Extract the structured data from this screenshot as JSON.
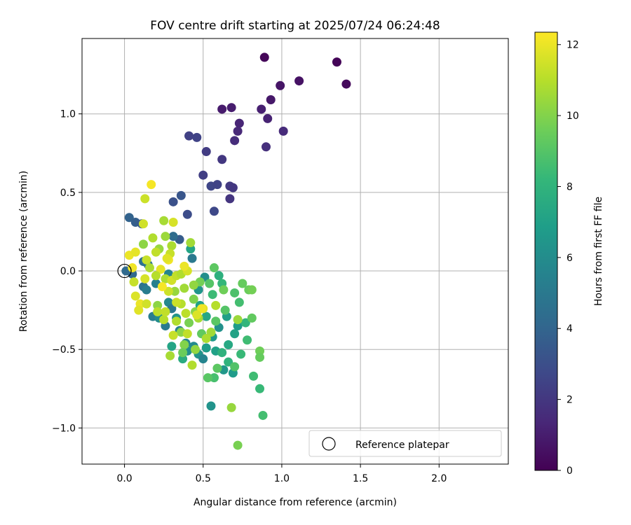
{
  "chart_data": {
    "type": "scatter",
    "title": "FOV centre drift starting at 2025/07/24 06:24:48",
    "xlabel": "Angular distance from reference (arcmin)",
    "ylabel": "Rotation from reference (arcmin)",
    "xlim": [
      -0.27,
      2.44
    ],
    "ylim": [
      -1.23,
      1.48
    ],
    "xticks": [
      0.0,
      0.5,
      1.0,
      1.5,
      2.0
    ],
    "xtick_labels": [
      "0.0",
      "0.5",
      "1.0",
      "1.5",
      "2.0"
    ],
    "yticks": [
      -1.0,
      -0.5,
      0.0,
      0.5,
      1.0
    ],
    "ytick_labels": [
      "−1.0",
      "−0.5",
      "0.0",
      "0.5",
      "1.0"
    ],
    "grid": true,
    "colormap": "viridis",
    "colorbar": {
      "label": "Hours from first FF file",
      "range": [
        0,
        12.35
      ],
      "ticks": [
        0,
        2,
        4,
        6,
        8,
        10,
        12
      ],
      "tick_labels": [
        "0",
        "2",
        "4",
        "6",
        "8",
        "10",
        "12"
      ]
    },
    "legend": {
      "placement": "lower-right",
      "entries": [
        {
          "label": "Reference platepar",
          "marker": "open-circle"
        }
      ]
    },
    "reference_point": {
      "x": 0.0,
      "y": 0.0
    },
    "points": [
      {
        "x": 1.35,
        "y": 1.33,
        "t": 0.1
      },
      {
        "x": 0.89,
        "y": 1.36,
        "t": 0.2
      },
      {
        "x": 1.41,
        "y": 1.19,
        "t": 0.3
      },
      {
        "x": 1.11,
        "y": 1.21,
        "t": 0.6
      },
      {
        "x": 0.99,
        "y": 1.18,
        "t": 0.7
      },
      {
        "x": 0.93,
        "y": 1.09,
        "t": 0.8
      },
      {
        "x": 0.62,
        "y": 1.03,
        "t": 0.9
      },
      {
        "x": 0.68,
        "y": 1.04,
        "t": 1.0
      },
      {
        "x": 0.87,
        "y": 1.03,
        "t": 1.1
      },
      {
        "x": 0.91,
        "y": 0.97,
        "t": 1.2
      },
      {
        "x": 0.73,
        "y": 0.94,
        "t": 1.3
      },
      {
        "x": 0.72,
        "y": 0.89,
        "t": 1.4
      },
      {
        "x": 1.01,
        "y": 0.89,
        "t": 1.5
      },
      {
        "x": 0.7,
        "y": 0.83,
        "t": 1.6
      },
      {
        "x": 0.9,
        "y": 0.79,
        "t": 1.7
      },
      {
        "x": 0.41,
        "y": 0.86,
        "t": 2.4
      },
      {
        "x": 0.46,
        "y": 0.85,
        "t": 2.5
      },
      {
        "x": 0.52,
        "y": 0.76,
        "t": 2.2
      },
      {
        "x": 0.62,
        "y": 0.71,
        "t": 2.0
      },
      {
        "x": 0.5,
        "y": 0.61,
        "t": 2.3
      },
      {
        "x": 0.55,
        "y": 0.54,
        "t": 2.6
      },
      {
        "x": 0.59,
        "y": 0.55,
        "t": 2.5
      },
      {
        "x": 0.67,
        "y": 0.54,
        "t": 2.1
      },
      {
        "x": 0.69,
        "y": 0.53,
        "t": 2.0
      },
      {
        "x": 0.67,
        "y": 0.46,
        "t": 1.9
      },
      {
        "x": 0.57,
        "y": 0.38,
        "t": 2.7
      },
      {
        "x": 0.36,
        "y": 0.48,
        "t": 3.3
      },
      {
        "x": 0.31,
        "y": 0.44,
        "t": 3.1
      },
      {
        "x": 0.4,
        "y": 0.36,
        "t": 2.9
      },
      {
        "x": 0.03,
        "y": 0.34,
        "t": 3.9
      },
      {
        "x": 0.07,
        "y": 0.31,
        "t": 3.7
      },
      {
        "x": 0.11,
        "y": 0.3,
        "t": 3.4
      },
      {
        "x": 0.35,
        "y": 0.2,
        "t": 3.6
      },
      {
        "x": 0.31,
        "y": 0.22,
        "t": 4.4
      },
      {
        "x": 0.43,
        "y": 0.08,
        "t": 5.0
      },
      {
        "x": 0.42,
        "y": 0.14,
        "t": 7.2
      },
      {
        "x": 0.01,
        "y": 0.0,
        "t": 4.2
      },
      {
        "x": 0.05,
        "y": -0.02,
        "t": 4.1
      },
      {
        "x": 0.12,
        "y": 0.06,
        "t": 4.6
      },
      {
        "x": 0.15,
        "y": 0.04,
        "t": 4.8
      },
      {
        "x": 0.12,
        "y": -0.1,
        "t": 4.7
      },
      {
        "x": 0.14,
        "y": -0.12,
        "t": 5.2
      },
      {
        "x": 0.2,
        "y": -0.08,
        "t": 5.4
      },
      {
        "x": 0.28,
        "y": -0.02,
        "t": 5.6
      },
      {
        "x": 0.18,
        "y": -0.29,
        "t": 5.3
      },
      {
        "x": 0.22,
        "y": -0.3,
        "t": 6.0
      },
      {
        "x": 0.26,
        "y": -0.35,
        "t": 5.1
      },
      {
        "x": 0.28,
        "y": -0.2,
        "t": 5.8
      },
      {
        "x": 0.3,
        "y": -0.24,
        "t": 4.9
      },
      {
        "x": 0.33,
        "y": -0.3,
        "t": 6.3
      },
      {
        "x": 0.35,
        "y": -0.38,
        "t": 5.5
      },
      {
        "x": 0.39,
        "y": -0.46,
        "t": 5.7
      },
      {
        "x": 0.4,
        "y": -0.51,
        "t": 6.1
      },
      {
        "x": 0.44,
        "y": -0.48,
        "t": 5.9
      },
      {
        "x": 0.47,
        "y": -0.53,
        "t": 6.4
      },
      {
        "x": 0.5,
        "y": -0.56,
        "t": 5.6
      },
      {
        "x": 0.52,
        "y": -0.49,
        "t": 6.8
      },
      {
        "x": 0.56,
        "y": -0.42,
        "t": 6.6
      },
      {
        "x": 0.58,
        "y": -0.51,
        "t": 7.0
      },
      {
        "x": 0.6,
        "y": -0.36,
        "t": 6.2
      },
      {
        "x": 0.63,
        "y": -0.63,
        "t": 6.5
      },
      {
        "x": 0.65,
        "y": -0.29,
        "t": 6.9
      },
      {
        "x": 0.66,
        "y": -0.47,
        "t": 7.4
      },
      {
        "x": 0.69,
        "y": -0.65,
        "t": 6.7
      },
      {
        "x": 0.7,
        "y": -0.4,
        "t": 7.1
      },
      {
        "x": 0.72,
        "y": -0.35,
        "t": 6.8
      },
      {
        "x": 0.55,
        "y": -0.86,
        "t": 6.3
      },
      {
        "x": 0.37,
        "y": -0.56,
        "t": 7.6
      },
      {
        "x": 0.3,
        "y": -0.48,
        "t": 7.2
      },
      {
        "x": 0.52,
        "y": -0.29,
        "t": 7.3
      },
      {
        "x": 0.48,
        "y": -0.22,
        "t": 7.0
      },
      {
        "x": 0.47,
        "y": -0.12,
        "t": 6.4
      },
      {
        "x": 0.51,
        "y": -0.04,
        "t": 6.1
      },
      {
        "x": 0.6,
        "y": -0.03,
        "t": 7.8
      },
      {
        "x": 0.62,
        "y": -0.08,
        "t": 8.2
      },
      {
        "x": 0.56,
        "y": -0.15,
        "t": 8.4
      },
      {
        "x": 0.7,
        "y": -0.14,
        "t": 8.8
      },
      {
        "x": 0.73,
        "y": -0.2,
        "t": 8.6
      },
      {
        "x": 0.77,
        "y": -0.33,
        "t": 8.1
      },
      {
        "x": 0.78,
        "y": -0.44,
        "t": 8.5
      },
      {
        "x": 0.74,
        "y": -0.53,
        "t": 8.3
      },
      {
        "x": 0.66,
        "y": -0.58,
        "t": 8.0
      },
      {
        "x": 0.62,
        "y": -0.52,
        "t": 7.9
      },
      {
        "x": 0.57,
        "y": -0.68,
        "t": 8.7
      },
      {
        "x": 0.53,
        "y": -0.68,
        "t": 9.1
      },
      {
        "x": 0.59,
        "y": -0.62,
        "t": 9.2
      },
      {
        "x": 0.7,
        "y": -0.61,
        "t": 8.9
      },
      {
        "x": 0.81,
        "y": -0.3,
        "t": 9.3
      },
      {
        "x": 0.79,
        "y": -0.12,
        "t": 9.5
      },
      {
        "x": 0.75,
        "y": -0.08,
        "t": 9.4
      },
      {
        "x": 0.63,
        "y": -0.12,
        "t": 9.6
      },
      {
        "x": 0.57,
        "y": 0.02,
        "t": 9.2
      },
      {
        "x": 0.54,
        "y": -0.08,
        "t": 9.0
      },
      {
        "x": 0.48,
        "y": -0.07,
        "t": 9.7
      },
      {
        "x": 0.44,
        "y": -0.18,
        "t": 9.9
      },
      {
        "x": 0.45,
        "y": -0.26,
        "t": 10.1
      },
      {
        "x": 0.41,
        "y": -0.33,
        "t": 9.8
      },
      {
        "x": 0.36,
        "y": -0.39,
        "t": 10.2
      },
      {
        "x": 0.38,
        "y": -0.47,
        "t": 10.0
      },
      {
        "x": 0.49,
        "y": -0.4,
        "t": 9.3
      },
      {
        "x": 0.58,
        "y": -0.32,
        "t": 9.1
      },
      {
        "x": 0.64,
        "y": -0.25,
        "t": 9.0
      },
      {
        "x": 0.86,
        "y": -0.51,
        "t": 9.6
      },
      {
        "x": 0.82,
        "y": -0.67,
        "t": 8.5
      },
      {
        "x": 0.86,
        "y": -0.75,
        "t": 8.3
      },
      {
        "x": 0.88,
        "y": -0.92,
        "t": 8.6
      },
      {
        "x": 0.68,
        "y": -0.87,
        "t": 10.4
      },
      {
        "x": 0.72,
        "y": -1.11,
        "t": 9.8
      },
      {
        "x": 0.86,
        "y": -0.55,
        "t": 9.4
      },
      {
        "x": 0.81,
        "y": -0.12,
        "t": 9.7
      },
      {
        "x": 0.72,
        "y": -0.31,
        "t": 10.5
      },
      {
        "x": 0.55,
        "y": -0.39,
        "t": 10.6
      },
      {
        "x": 0.52,
        "y": -0.43,
        "t": 10.8
      },
      {
        "x": 0.45,
        "y": -0.5,
        "t": 10.3
      },
      {
        "x": 0.43,
        "y": -0.6,
        "t": 10.9
      },
      {
        "x": 0.37,
        "y": -0.52,
        "t": 9.5
      },
      {
        "x": 0.29,
        "y": -0.54,
        "t": 10.7
      },
      {
        "x": 0.25,
        "y": -0.31,
        "t": 11.0
      },
      {
        "x": 0.21,
        "y": -0.22,
        "t": 10.2
      },
      {
        "x": 0.21,
        "y": -0.26,
        "t": 11.1
      },
      {
        "x": 0.26,
        "y": -0.26,
        "t": 11.2
      },
      {
        "x": 0.31,
        "y": -0.41,
        "t": 11.3
      },
      {
        "x": 0.33,
        "y": -0.32,
        "t": 10.9
      },
      {
        "x": 0.36,
        "y": -0.21,
        "t": 11.0
      },
      {
        "x": 0.38,
        "y": -0.11,
        "t": 10.6
      },
      {
        "x": 0.32,
        "y": -0.13,
        "t": 10.4
      },
      {
        "x": 0.28,
        "y": -0.13,
        "t": 11.4
      },
      {
        "x": 0.26,
        "y": -0.05,
        "t": 10.8
      },
      {
        "x": 0.3,
        "y": -0.06,
        "t": 11.5
      },
      {
        "x": 0.33,
        "y": -0.03,
        "t": 11.2
      },
      {
        "x": 0.36,
        "y": -0.02,
        "t": 10.9
      },
      {
        "x": 0.4,
        "y": 0.0,
        "t": 11.6
      },
      {
        "x": 0.44,
        "y": -0.09,
        "t": 10.3
      },
      {
        "x": 0.5,
        "y": -0.24,
        "t": 11.8
      },
      {
        "x": 0.58,
        "y": -0.22,
        "t": 11.0
      },
      {
        "x": 0.47,
        "y": -0.3,
        "t": 10.7
      },
      {
        "x": 0.4,
        "y": -0.4,
        "t": 11.2
      },
      {
        "x": 0.42,
        "y": 0.18,
        "t": 10.6
      },
      {
        "x": 0.3,
        "y": 0.16,
        "t": 10.8
      },
      {
        "x": 0.29,
        "y": 0.11,
        "t": 11.3
      },
      {
        "x": 0.22,
        "y": 0.14,
        "t": 10.4
      },
      {
        "x": 0.18,
        "y": 0.21,
        "t": 10.9
      },
      {
        "x": 0.12,
        "y": 0.17,
        "t": 10.2
      },
      {
        "x": 0.26,
        "y": 0.22,
        "t": 10.5
      },
      {
        "x": 0.25,
        "y": 0.32,
        "t": 10.7
      },
      {
        "x": 0.31,
        "y": 0.31,
        "t": 11.6
      },
      {
        "x": 0.13,
        "y": 0.46,
        "t": 11.4
      },
      {
        "x": 0.17,
        "y": 0.55,
        "t": 12.2
      },
      {
        "x": 0.12,
        "y": 0.3,
        "t": 11.5
      },
      {
        "x": 0.03,
        "y": 0.1,
        "t": 12.0
      },
      {
        "x": 0.07,
        "y": 0.12,
        "t": 11.9
      },
      {
        "x": 0.05,
        "y": 0.02,
        "t": 12.1
      },
      {
        "x": 0.06,
        "y": -0.07,
        "t": 11.3
      },
      {
        "x": 0.07,
        "y": -0.16,
        "t": 11.7
      },
      {
        "x": 0.1,
        "y": -0.21,
        "t": 12.0
      },
      {
        "x": 0.09,
        "y": -0.25,
        "t": 11.8
      },
      {
        "x": 0.14,
        "y": -0.21,
        "t": 11.5
      },
      {
        "x": 0.13,
        "y": -0.05,
        "t": 11.6
      },
      {
        "x": 0.14,
        "y": 0.07,
        "t": 11.3
      },
      {
        "x": 0.2,
        "y": 0.12,
        "t": 11.2
      },
      {
        "x": 0.23,
        "y": 0.01,
        "t": 11.9
      },
      {
        "x": 0.24,
        "y": -0.1,
        "t": 12.2
      },
      {
        "x": 0.28,
        "y": 0.07,
        "t": 12.1
      },
      {
        "x": 0.27,
        "y": 0.08,
        "t": 11.8
      },
      {
        "x": 0.38,
        "y": 0.03,
        "t": 12.0
      },
      {
        "x": 0.49,
        "y": -0.24,
        "t": 12.1
      },
      {
        "x": 0.46,
        "y": -0.28,
        "t": 11.7
      },
      {
        "x": 0.39,
        "y": -0.27,
        "t": 11.1
      },
      {
        "x": 0.33,
        "y": -0.2,
        "t": 11.4
      },
      {
        "x": 0.16,
        "y": 0.02,
        "t": 10.8
      },
      {
        "x": 0.2,
        "y": -0.03,
        "t": 11.0
      }
    ]
  }
}
